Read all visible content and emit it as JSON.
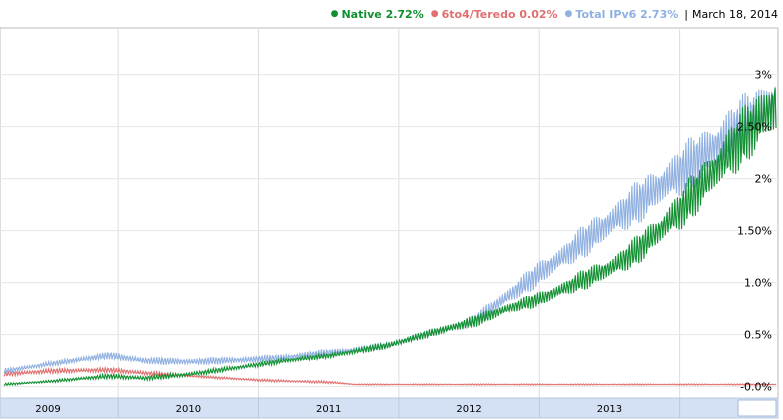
{
  "legend": {
    "items": [
      {
        "label": "Native 2.72%",
        "color": "#109030"
      },
      {
        "label": "6to4/Teredo 0.02%",
        "color": "#e07070"
      },
      {
        "label": "Total IPv6 2.73%",
        "color": "#8fb0e0"
      }
    ],
    "date": "March 18, 2014"
  },
  "chart_data": {
    "type": "line",
    "title": "",
    "xlabel": "",
    "ylabel": "",
    "x_ticks": [
      "2009",
      "2010",
      "2011",
      "2012",
      "2013"
    ],
    "y_ticks": [
      "-0.0%",
      "0.5%",
      "1.0%",
      "1.50%",
      "2%",
      "2.50%",
      "3%"
    ],
    "ylim": [
      0,
      3.4
    ],
    "grid": true,
    "legend_position": "top-right",
    "series": [
      {
        "name": "Native",
        "color": "#109030",
        "x": [
          "2008-09",
          "2009-01",
          "2009-06",
          "2009-09",
          "2010-01",
          "2010-06",
          "2010-09",
          "2011-01",
          "2011-06",
          "2011-09",
          "2012-01",
          "2012-04",
          "2012-07",
          "2012-10",
          "2013-01",
          "2013-03",
          "2013-05",
          "2013-07",
          "2013-09",
          "2013-11",
          "2014-01",
          "2014-03"
        ],
        "y": [
          0.02,
          0.05,
          0.1,
          0.08,
          0.12,
          0.2,
          0.25,
          0.3,
          0.4,
          0.5,
          0.62,
          0.75,
          0.85,
          1.0,
          1.15,
          1.3,
          1.5,
          1.72,
          1.98,
          2.25,
          2.5,
          2.72
        ],
        "amplitude": [
          0.01,
          0.01,
          0.02,
          0.02,
          0.02,
          0.02,
          0.02,
          0.02,
          0.03,
          0.03,
          0.05,
          0.05,
          0.06,
          0.08,
          0.1,
          0.12,
          0.14,
          0.17,
          0.2,
          0.22,
          0.25,
          0.28
        ]
      },
      {
        "name": "6to4/Teredo",
        "color": "#e07070",
        "x": [
          "2008-09",
          "2009-01",
          "2009-06",
          "2009-09",
          "2010-01",
          "2010-04",
          "2010-07",
          "2010-10",
          "2011-01",
          "2011-03",
          "2012-01",
          "2013-01",
          "2014-03"
        ],
        "y": [
          0.12,
          0.15,
          0.16,
          0.13,
          0.1,
          0.08,
          0.06,
          0.05,
          0.04,
          0.02,
          0.02,
          0.02,
          0.02
        ],
        "amplitude": [
          0.02,
          0.02,
          0.02,
          0.02,
          0.01,
          0.01,
          0.01,
          0.01,
          0.01,
          0.005,
          0.005,
          0.005,
          0.005
        ]
      },
      {
        "name": "Total IPv6",
        "color": "#8fb0e0",
        "x": [
          "2008-09",
          "2009-01",
          "2009-06",
          "2009-09",
          "2010-01",
          "2010-06",
          "2010-09",
          "2011-01",
          "2011-03",
          "2011-06",
          "2011-09",
          "2012-01",
          "2014-03"
        ],
        "y": [
          0.15,
          0.22,
          0.3,
          0.25,
          0.24,
          0.26,
          0.28,
          0.33,
          0.35,
          0.4,
          0.5,
          0.62,
          2.73
        ],
        "amplitude": [
          0.02,
          0.02,
          0.03,
          0.03,
          0.03,
          0.03,
          0.03,
          0.03,
          0.03,
          0.03,
          0.03,
          0.05,
          0.28
        ]
      }
    ]
  }
}
